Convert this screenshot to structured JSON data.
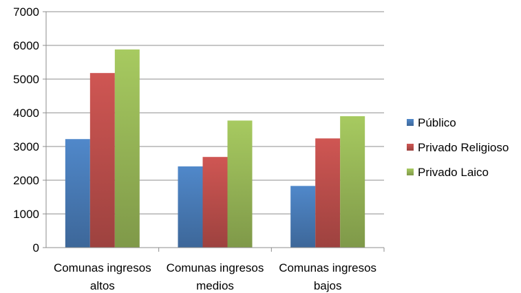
{
  "chart_data": {
    "type": "bar",
    "title": "",
    "xlabel": "",
    "ylabel": "",
    "ylim": [
      0,
      7000
    ],
    "yticks": [
      0,
      1000,
      2000,
      3000,
      4000,
      5000,
      6000,
      7000
    ],
    "ytick_labels": [
      "0",
      "1000",
      "2000",
      "3000",
      "4000",
      "5000",
      "6000",
      "7000"
    ],
    "grid": true,
    "legend_position": "right",
    "categories": [
      [
        "Comunas ingresos",
        "altos"
      ],
      [
        "Comunas ingresos",
        "medios"
      ],
      [
        "Comunas ingresos",
        "bajos"
      ]
    ],
    "series": [
      {
        "name": "Público",
        "color": "#4A7EBB",
        "values": [
          3220,
          2410,
          1830
        ]
      },
      {
        "name": "Privado Religioso",
        "color": "#C0504D",
        "values": [
          5180,
          2690,
          3240
        ]
      },
      {
        "name": "Privado Laico",
        "color": "#9BBB59",
        "values": [
          5880,
          3770,
          3900
        ]
      }
    ]
  }
}
